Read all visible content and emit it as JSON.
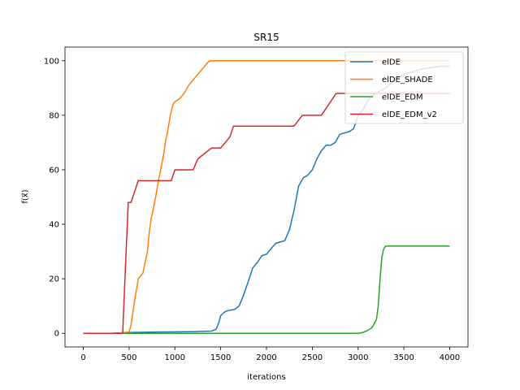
{
  "chart_data": {
    "type": "line",
    "title": "SR15",
    "xlabel": "iterations",
    "ylabel": "f(x⃗)",
    "xlim": [
      -200,
      4200
    ],
    "ylim": [
      -5,
      105
    ],
    "xticks": [
      0,
      500,
      1000,
      1500,
      2000,
      2500,
      3000,
      3500,
      4000
    ],
    "yticks": [
      0,
      20,
      40,
      60,
      80,
      100
    ],
    "legend_position": "upper right",
    "grid": false,
    "series": [
      {
        "name": "elDE",
        "color": "#1f77b4",
        "x": [
          0,
          300,
          500,
          800,
          1200,
          1400,
          1450,
          1480,
          1500,
          1550,
          1600,
          1650,
          1700,
          1750,
          1800,
          1850,
          1900,
          1950,
          2000,
          2050,
          2100,
          2150,
          2200,
          2250,
          2300,
          2350,
          2400,
          2450,
          2500,
          2550,
          2600,
          2650,
          2700,
          2750,
          2800,
          2850,
          2900,
          2950,
          3000,
          3050,
          3100,
          3150,
          3200,
          3250,
          3300,
          3400,
          3500,
          3600,
          3700,
          3800,
          3900,
          4000
        ],
        "y": [
          0,
          0,
          0.3,
          0.5,
          0.6,
          0.8,
          1.5,
          4,
          6.5,
          8,
          8.5,
          8.7,
          10,
          14,
          19,
          24,
          26,
          28.5,
          29,
          31,
          33,
          33.5,
          34,
          38,
          45,
          54,
          57,
          58,
          60,
          64,
          67,
          69,
          69,
          70,
          73,
          73.5,
          74,
          75,
          80,
          82,
          85,
          87,
          88,
          89,
          90,
          93,
          95,
          96,
          97,
          97.5,
          98,
          98
        ]
      },
      {
        "name": "elDE_SHADE",
        "color": "#ff7f0e",
        "x": [
          0,
          350,
          500,
          520,
          560,
          600,
          650,
          700,
          720,
          740,
          760,
          790,
          820,
          850,
          880,
          900,
          920,
          950,
          980,
          1000,
          1050,
          1100,
          1150,
          1200,
          1250,
          1300,
          1350,
          1380,
          1400,
          1500,
          2000,
          3000,
          4000
        ],
        "y": [
          0,
          0,
          0.5,
          3,
          12,
          20,
          22,
          30,
          37,
          42,
          45,
          50,
          56,
          61,
          66,
          71,
          74,
          80,
          84,
          85,
          86,
          88,
          91,
          93,
          95,
          97,
          99,
          100,
          100,
          100,
          100,
          100,
          100
        ]
      },
      {
        "name": "elDE_EDM",
        "color": "#2ca02c",
        "x": [
          0,
          1000,
          2000,
          3000,
          3050,
          3100,
          3150,
          3200,
          3220,
          3240,
          3260,
          3280,
          3300,
          3350,
          3500,
          3800,
          4000
        ],
        "y": [
          0,
          0,
          0,
          0,
          0.3,
          1,
          2,
          5,
          10,
          20,
          28,
          31,
          32,
          32,
          32,
          32,
          32
        ]
      },
      {
        "name": "elDE_EDM_v2",
        "color": "#d62728",
        "x": [
          0,
          430,
          440,
          455,
          470,
          480,
          490,
          500,
          520,
          560,
          600,
          640,
          700,
          800,
          960,
          1000,
          1100,
          1200,
          1250,
          1400,
          1500,
          1600,
          1640,
          1660,
          1700,
          2000,
          2300,
          2390,
          2400,
          2600,
          2760,
          2780,
          2900,
          3000,
          3100,
          3300,
          3400,
          3600,
          3800,
          4000
        ],
        "y": [
          0,
          0,
          8,
          20,
          32,
          40,
          48,
          48,
          48,
          52,
          56,
          56,
          56,
          56,
          56,
          60,
          60,
          60,
          64,
          68,
          68,
          72,
          76,
          76,
          76,
          76,
          76,
          80,
          80,
          80,
          88,
          88,
          88,
          88,
          88,
          88,
          88,
          88,
          88,
          88
        ]
      }
    ]
  }
}
